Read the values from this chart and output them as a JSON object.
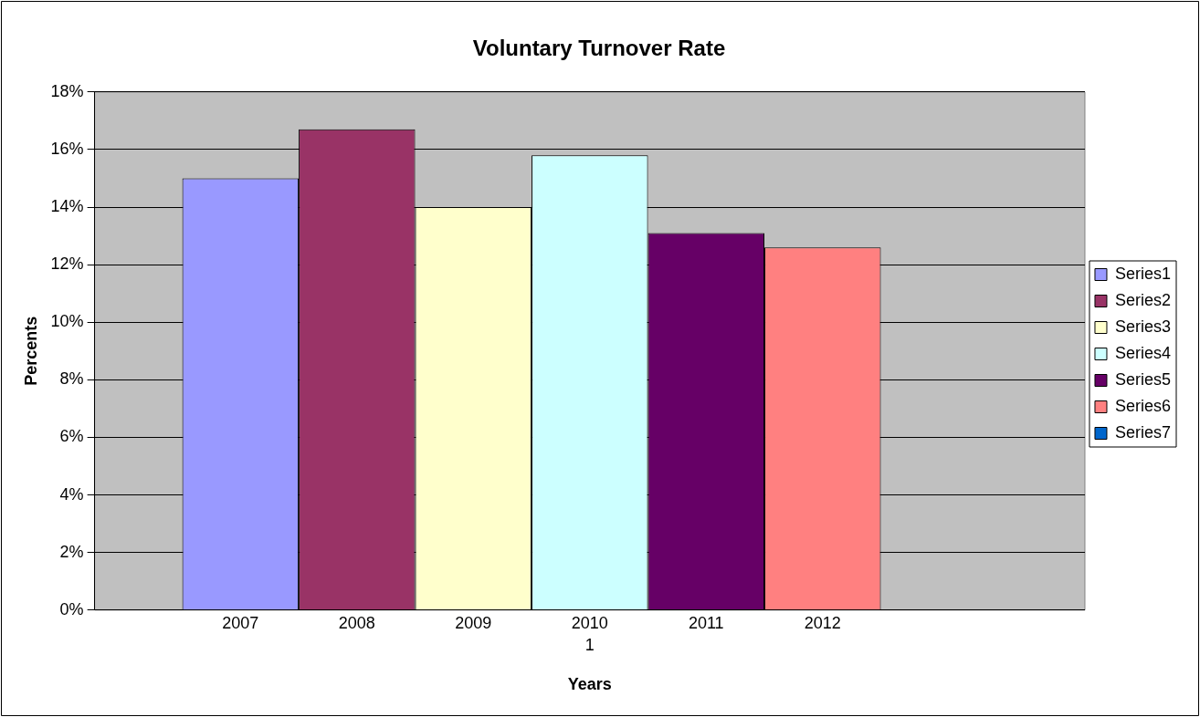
{
  "chart_data": {
    "type": "bar",
    "title": "Voluntary Turnover Rate",
    "xlabel": "Years",
    "ylabel": "Percents",
    "categories": [
      "1"
    ],
    "series": [
      {
        "name": "Series1",
        "color": "#9999ff",
        "values": [
          15.0
        ]
      },
      {
        "name": "Series2",
        "color": "#993366",
        "values": [
          16.7
        ]
      },
      {
        "name": "Series3",
        "color": "#ffffcc",
        "values": [
          14.0
        ]
      },
      {
        "name": "Series4",
        "color": "#ccffff",
        "values": [
          15.8
        ]
      },
      {
        "name": "Series5",
        "color": "#660066",
        "values": [
          13.1
        ]
      },
      {
        "name": "Series6",
        "color": "#ff8080",
        "values": [
          12.6
        ]
      },
      {
        "name": "Series7",
        "color": "#0066cc",
        "values": [
          null
        ]
      }
    ],
    "annotations": [
      "2007",
      "2008",
      "2009",
      "2010",
      "2011",
      "2012"
    ],
    "ylim": [
      0,
      18
    ],
    "yticks": [
      {
        "value": 0,
        "label": "0%"
      },
      {
        "value": 2,
        "label": "2%"
      },
      {
        "value": 4,
        "label": "4%"
      },
      {
        "value": 6,
        "label": "6%"
      },
      {
        "value": 8,
        "label": "8%"
      },
      {
        "value": 10,
        "label": "10%"
      },
      {
        "value": 12,
        "label": "12%"
      },
      {
        "value": 14,
        "label": "14%"
      },
      {
        "value": 16,
        "label": "16%"
      },
      {
        "value": 18,
        "label": "18%"
      }
    ],
    "grid": "y",
    "legend": "right"
  }
}
